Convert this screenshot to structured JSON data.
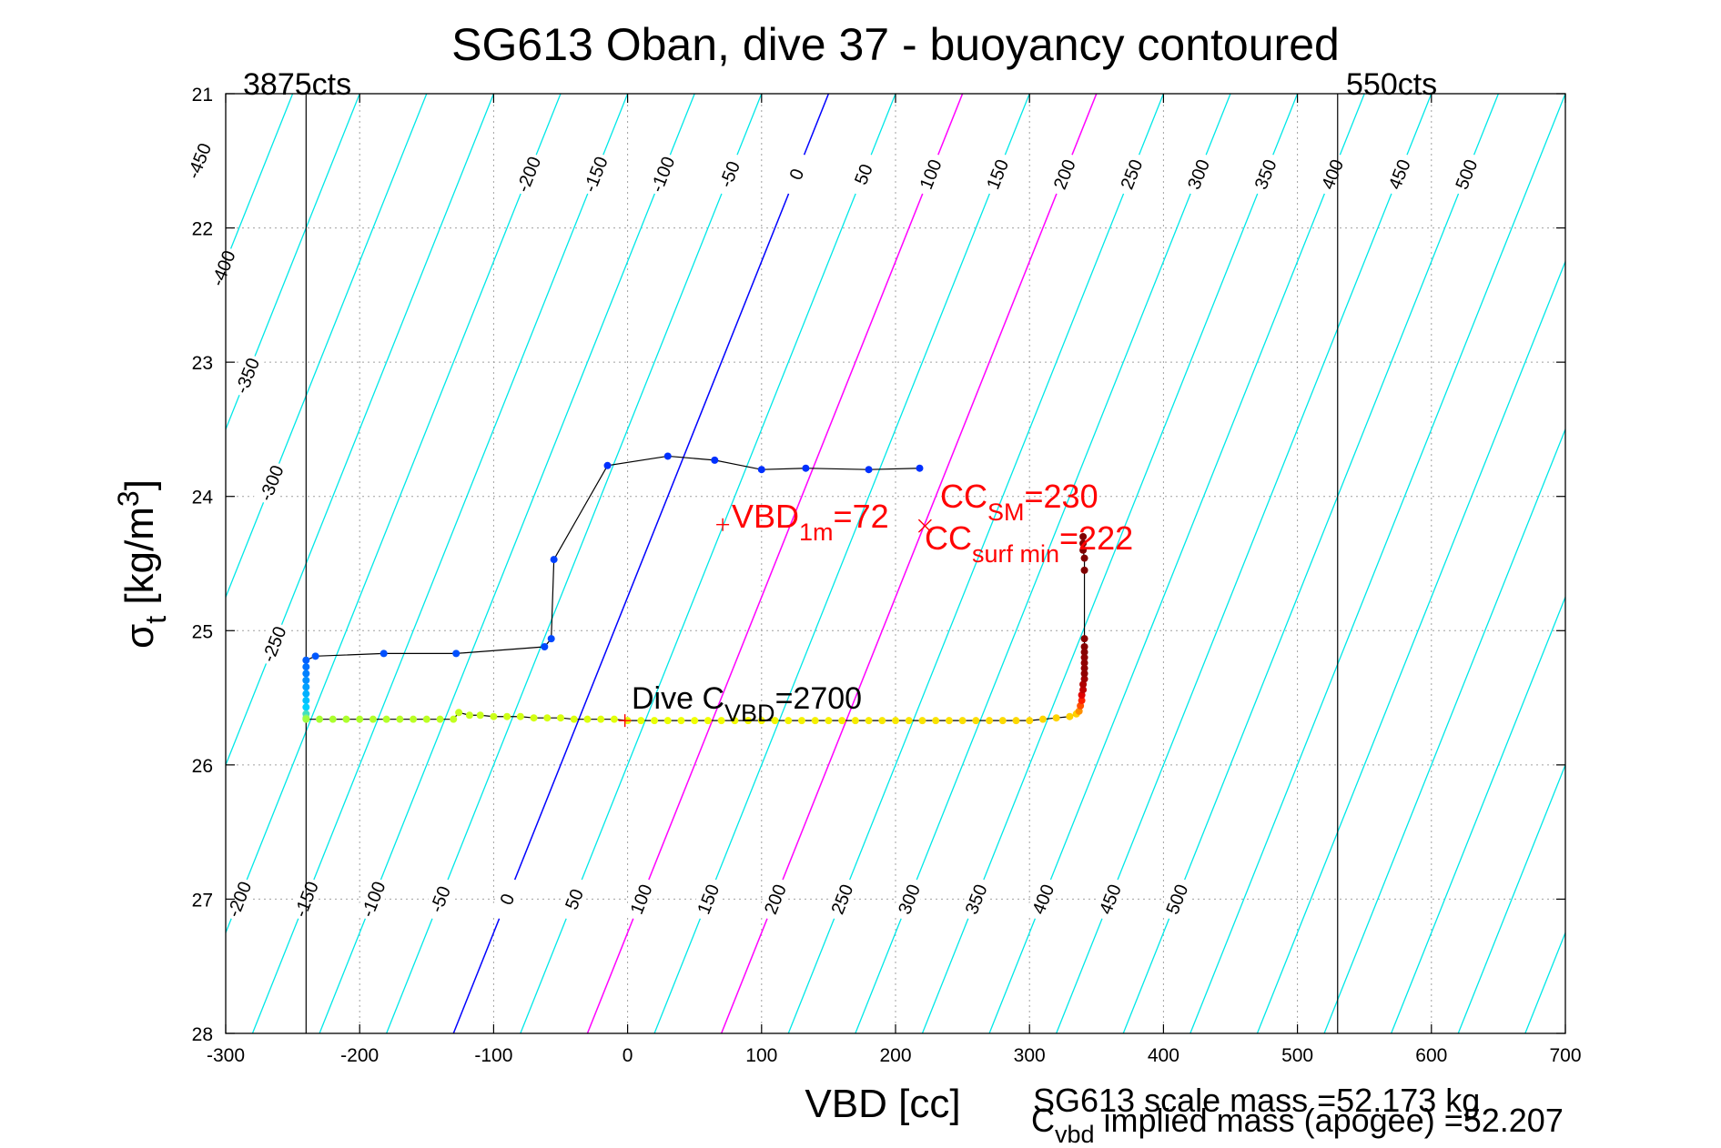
{
  "chart_data": {
    "type": "scatter",
    "title": "SG613 Oban, dive 37 - buoyancy contoured",
    "xlabel": "VBD [cc]",
    "ylabel_main": "σ",
    "ylabel_sub": "t",
    "ylabel_units": " [kg/m",
    "ylabel_sup": "3",
    "ylabel_close": "]",
    "xlim": [
      -300,
      700
    ],
    "ylim": [
      28,
      21
    ],
    "xticks": [
      -300,
      -200,
      -100,
      0,
      100,
      200,
      300,
      400,
      500,
      600,
      700
    ],
    "yticks": [
      21,
      22,
      23,
      24,
      25,
      26,
      27,
      28
    ],
    "grid": true,
    "counts_left": {
      "x": -240,
      "label": "3875cts"
    },
    "counts_right": {
      "x": 530,
      "label": "550cts"
    },
    "contours": {
      "levels": [
        -450,
        -400,
        -350,
        -300,
        -250,
        -200,
        -150,
        -100,
        -50,
        0,
        50,
        100,
        150,
        200,
        250,
        300,
        350,
        400,
        450,
        500
      ],
      "vbd_at_sigma_28": -130,
      "vbd_per_sigma": -40,
      "step": 50,
      "colors": {
        "default": "#00e8e8",
        "zero": "#0000ff",
        "highlight": "#ff00ff"
      },
      "highlight_levels": [
        100,
        200
      ],
      "label_bands": [
        {
          "sigma_top": 21.2,
          "sigma_bottom": 22.0,
          "levels": [
            -200,
            -150,
            -100,
            -50,
            0,
            50,
            100,
            150,
            200,
            250,
            300,
            350,
            400,
            450,
            500
          ]
        },
        {
          "sigma_top": 21.1,
          "sigma_bottom": 21.9,
          "levels": [
            -450
          ]
        },
        {
          "sigma_top": 21.9,
          "sigma_bottom": 22.7,
          "levels": [
            -400
          ]
        },
        {
          "sigma_top": 22.7,
          "sigma_bottom": 23.5,
          "levels": [
            -350
          ]
        },
        {
          "sigma_top": 23.5,
          "sigma_bottom": 24.3,
          "levels": [
            -300
          ]
        },
        {
          "sigma_top": 24.7,
          "sigma_bottom": 25.5,
          "levels": [
            -250
          ]
        },
        {
          "sigma_top": 26.6,
          "sigma_bottom": 27.4,
          "levels": [
            -200,
            -150,
            -100,
            -50,
            0,
            50,
            100,
            150,
            200,
            250,
            300,
            350,
            400,
            450,
            500
          ]
        }
      ]
    },
    "series": [
      {
        "x": [
          218,
          180,
          133,
          100,
          65,
          30,
          -15,
          -55,
          -57,
          -62,
          -128,
          -182,
          -233,
          -240,
          -240,
          -240,
          -240,
          -240,
          -240,
          -240,
          -240,
          -240,
          -240,
          -240
        ],
        "y": [
          23.79,
          23.8,
          23.79,
          23.8,
          23.73,
          23.7,
          23.77,
          24.47,
          25.06,
          25.12,
          25.17,
          25.17,
          25.19,
          25.22,
          25.27,
          25.32,
          25.37,
          25.42,
          25.47,
          25.52,
          25.57,
          25.62,
          25.65,
          25.66
        ],
        "colors": [
          "#0030ff",
          "#0030ff",
          "#0030ff",
          "#0030ff",
          "#0030ff",
          "#0030ff",
          "#0030ff",
          "#0040ff",
          "#0048ff",
          "#0048ff",
          "#0050ff",
          "#0050ff",
          "#0058ff",
          "#0060ff",
          "#0070ff",
          "#0080ff",
          "#0090ff",
          "#00a0ff",
          "#00b0ff",
          "#00c0ff",
          "#00d0ff",
          "#40e0c0",
          "#80f080",
          "#a0ff40"
        ]
      },
      {
        "x": [
          -230,
          -220,
          -210,
          -200,
          -190,
          -180,
          -170,
          -160,
          -150,
          -140,
          -130,
          -126,
          -118,
          -110,
          -100,
          -90,
          -80,
          -70,
          -60,
          -50,
          -40,
          -30,
          -20,
          -10,
          0,
          10,
          20,
          30,
          40,
          50,
          60,
          70,
          80,
          90,
          100,
          110,
          120,
          130,
          140,
          150,
          160,
          170,
          180,
          190,
          200,
          210,
          220,
          230,
          240,
          250,
          260,
          270,
          280,
          290,
          300,
          310,
          320,
          330,
          335
        ],
        "y": [
          25.66,
          25.66,
          25.66,
          25.66,
          25.66,
          25.66,
          25.66,
          25.66,
          25.66,
          25.66,
          25.66,
          25.61,
          25.63,
          25.63,
          25.64,
          25.64,
          25.64,
          25.65,
          25.65,
          25.65,
          25.66,
          25.66,
          25.66,
          25.66,
          25.67,
          25.67,
          25.67,
          25.67,
          25.67,
          25.67,
          25.67,
          25.67,
          25.67,
          25.67,
          25.67,
          25.67,
          25.67,
          25.67,
          25.67,
          25.67,
          25.67,
          25.67,
          25.67,
          25.67,
          25.67,
          25.67,
          25.67,
          25.67,
          25.67,
          25.67,
          25.67,
          25.67,
          25.67,
          25.67,
          25.67,
          25.66,
          25.65,
          25.64,
          25.62
        ],
        "color_start": "#a8ff30",
        "color_mid": "#f0ff00",
        "color_end": "#ffd000"
      },
      {
        "x": [
          337,
          338,
          339,
          339,
          340,
          340,
          341,
          341,
          341,
          341,
          341,
          341,
          341,
          341,
          341,
          341,
          340,
          340,
          340
        ],
        "y": [
          25.6,
          25.56,
          25.52,
          25.48,
          25.44,
          25.4,
          25.36,
          25.32,
          25.28,
          25.24,
          25.2,
          25.16,
          25.12,
          25.06,
          24.55,
          24.46,
          24.4,
          24.35,
          24.3
        ],
        "colors": [
          "#ff9000",
          "#ff5000",
          "#ff2000",
          "#e00000",
          "#c00000",
          "#b00000",
          "#a00000",
          "#900000",
          "#900000",
          "#900000",
          "#900000",
          "#880000",
          "#880000",
          "#880000",
          "#800000",
          "#800000",
          "#800000",
          "#800000",
          "#800000"
        ]
      }
    ],
    "annotations": [
      {
        "kind": "marker-plus",
        "x": 71,
        "y": 24.21,
        "color": "#ff0000"
      },
      {
        "kind": "marker-cross",
        "x": 222,
        "y": 24.22,
        "color": "#ff0000"
      },
      {
        "kind": "marker-plus",
        "x": -2,
        "y": 25.67,
        "color": "#ff0000"
      }
    ],
    "labels": {
      "vbd1m": {
        "main": "VBD",
        "sub": "1m",
        "tail": "=72",
        "color": "#ff0000"
      },
      "ccsm": {
        "main": "CC",
        "sub": "SM",
        "tail": "=230",
        "color": "#ff0000"
      },
      "ccsurf": {
        "main": "CC",
        "sub": "surf min",
        "tail": "=222",
        "color": "#ff0000"
      },
      "divecvbd": {
        "main": "Dive C",
        "sub": "VBD",
        "tail": "=2700",
        "color": "#000000"
      }
    },
    "footer": {
      "scale_mass": "SG613 scale mass =52.173 kg",
      "implied_main": "C",
      "implied_sub": "vbd",
      "implied_tail": " implied mass (apogee) =52.207"
    }
  }
}
